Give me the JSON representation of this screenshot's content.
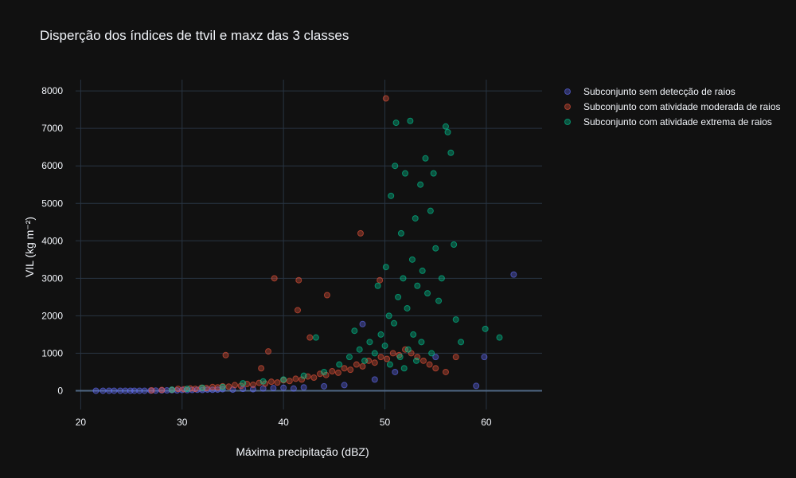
{
  "chart_data": {
    "type": "scatter",
    "title": "Disperção dos índices de ttvil e maxz das 3 classes",
    "xlabel": "Máxima precipitação (dBZ)",
    "ylabel": "VIL (kg m⁻²)",
    "xlim": [
      19.5,
      65.5
    ],
    "ylim": [
      -500,
      8300
    ],
    "x_ticks": [
      20,
      30,
      40,
      50,
      60
    ],
    "y_ticks": [
      0,
      1000,
      2000,
      3000,
      4000,
      5000,
      6000,
      7000,
      8000
    ],
    "grid": true,
    "legend_position": "top-right",
    "series": [
      {
        "name": "Subconjunto sem detecção de raios",
        "color": "#636efa",
        "points": [
          [
            21.5,
            0
          ],
          [
            22.2,
            0
          ],
          [
            22.8,
            0
          ],
          [
            23.3,
            0
          ],
          [
            23.9,
            0
          ],
          [
            24.4,
            0
          ],
          [
            24.9,
            0
          ],
          [
            25.3,
            0
          ],
          [
            25.8,
            0
          ],
          [
            26.3,
            0
          ],
          [
            26.9,
            5
          ],
          [
            27.4,
            5
          ],
          [
            28.0,
            10
          ],
          [
            28.5,
            10
          ],
          [
            29.0,
            15
          ],
          [
            29.5,
            10
          ],
          [
            30.0,
            20
          ],
          [
            30.5,
            15
          ],
          [
            31.0,
            20
          ],
          [
            31.5,
            25
          ],
          [
            32.0,
            20
          ],
          [
            32.5,
            30
          ],
          [
            33.0,
            25
          ],
          [
            33.5,
            30
          ],
          [
            34.0,
            40
          ],
          [
            35.0,
            30
          ],
          [
            36.0,
            50
          ],
          [
            37.0,
            40
          ],
          [
            38.0,
            60
          ],
          [
            39.0,
            70
          ],
          [
            40.0,
            80
          ],
          [
            41.0,
            60
          ],
          [
            42.0,
            90
          ],
          [
            44.0,
            120
          ],
          [
            46.0,
            150
          ],
          [
            47.8,
            1780
          ],
          [
            49.0,
            300
          ],
          [
            51.0,
            500
          ],
          [
            55.0,
            900
          ],
          [
            59.0,
            130
          ],
          [
            59.8,
            900
          ],
          [
            62.7,
            3100
          ]
        ]
      },
      {
        "name": "Subconjunto com atividade moderada de raios",
        "color": "#ef553b",
        "points": [
          [
            27.0,
            10
          ],
          [
            28.0,
            20
          ],
          [
            29.0,
            25
          ],
          [
            29.6,
            50
          ],
          [
            30.2,
            40
          ],
          [
            30.8,
            60
          ],
          [
            31.3,
            50
          ],
          [
            31.9,
            80
          ],
          [
            32.4,
            70
          ],
          [
            33.0,
            100
          ],
          [
            33.5,
            90
          ],
          [
            34.0,
            120
          ],
          [
            34.3,
            950
          ],
          [
            34.6,
            110
          ],
          [
            35.2,
            150
          ],
          [
            35.8,
            130
          ],
          [
            36.4,
            180
          ],
          [
            37.0,
            160
          ],
          [
            37.6,
            210
          ],
          [
            37.8,
            600
          ],
          [
            38.2,
            190
          ],
          [
            38.5,
            1050
          ],
          [
            38.8,
            240
          ],
          [
            39.1,
            3000
          ],
          [
            39.4,
            220
          ],
          [
            40.0,
            280
          ],
          [
            40.6,
            260
          ],
          [
            41.2,
            320
          ],
          [
            41.4,
            2150
          ],
          [
            41.5,
            2950
          ],
          [
            41.8,
            300
          ],
          [
            42.4,
            380
          ],
          [
            42.6,
            1420
          ],
          [
            43.0,
            350
          ],
          [
            43.6,
            450
          ],
          [
            44.2,
            420
          ],
          [
            44.3,
            2550
          ],
          [
            44.8,
            520
          ],
          [
            45.4,
            480
          ],
          [
            46.0,
            600
          ],
          [
            46.6,
            560
          ],
          [
            47.2,
            700
          ],
          [
            47.8,
            650
          ],
          [
            47.6,
            4200
          ],
          [
            48.4,
            800
          ],
          [
            49.0,
            750
          ],
          [
            49.6,
            900
          ],
          [
            49.5,
            2950
          ],
          [
            50.2,
            850
          ],
          [
            50.1,
            7800
          ],
          [
            50.8,
            1000
          ],
          [
            51.4,
            950
          ],
          [
            52.0,
            1100
          ],
          [
            52.6,
            1000
          ],
          [
            53.2,
            900
          ],
          [
            53.8,
            800
          ],
          [
            54.4,
            700
          ],
          [
            55.0,
            600
          ],
          [
            56.0,
            500
          ],
          [
            57.0,
            900
          ]
        ]
      },
      {
        "name": "Subconjunto com atividade extrema de raios",
        "color": "#00cc96",
        "points": [
          [
            29.0,
            30
          ],
          [
            30.5,
            50
          ],
          [
            32.0,
            80
          ],
          [
            34.0,
            100
          ],
          [
            36.0,
            200
          ],
          [
            38.0,
            250
          ],
          [
            40.0,
            300
          ],
          [
            42.0,
            400
          ],
          [
            43.2,
            1420
          ],
          [
            44.0,
            500
          ],
          [
            45.5,
            700
          ],
          [
            46.5,
            900
          ],
          [
            47.0,
            1600
          ],
          [
            47.5,
            1100
          ],
          [
            48.0,
            800
          ],
          [
            48.5,
            1300
          ],
          [
            49.0,
            1000
          ],
          [
            49.3,
            2800
          ],
          [
            49.6,
            1500
          ],
          [
            50.0,
            1200
          ],
          [
            50.1,
            3300
          ],
          [
            50.4,
            2000
          ],
          [
            50.6,
            5200
          ],
          [
            50.9,
            1800
          ],
          [
            51.0,
            6000
          ],
          [
            51.1,
            7150
          ],
          [
            51.3,
            2500
          ],
          [
            51.6,
            4200
          ],
          [
            51.8,
            3000
          ],
          [
            52.0,
            5800
          ],
          [
            52.2,
            2200
          ],
          [
            52.5,
            7200
          ],
          [
            52.7,
            3500
          ],
          [
            53.0,
            4600
          ],
          [
            53.2,
            2800
          ],
          [
            53.5,
            5500
          ],
          [
            53.7,
            3200
          ],
          [
            54.0,
            6200
          ],
          [
            54.2,
            2600
          ],
          [
            54.5,
            4800
          ],
          [
            54.8,
            5800
          ],
          [
            55.0,
            3800
          ],
          [
            55.3,
            2400
          ],
          [
            55.6,
            3000
          ],
          [
            56.0,
            7050
          ],
          [
            56.2,
            6900
          ],
          [
            56.5,
            6350
          ],
          [
            56.8,
            3900
          ],
          [
            57.0,
            1900
          ],
          [
            57.5,
            1300
          ],
          [
            59.9,
            1650
          ],
          [
            61.3,
            1420
          ],
          [
            51.5,
            900
          ],
          [
            52.3,
            1100
          ],
          [
            53.1,
            800
          ],
          [
            52.8,
            1500
          ],
          [
            51.9,
            600
          ],
          [
            50.5,
            700
          ],
          [
            53.6,
            1300
          ],
          [
            54.6,
            1000
          ]
        ]
      }
    ]
  }
}
